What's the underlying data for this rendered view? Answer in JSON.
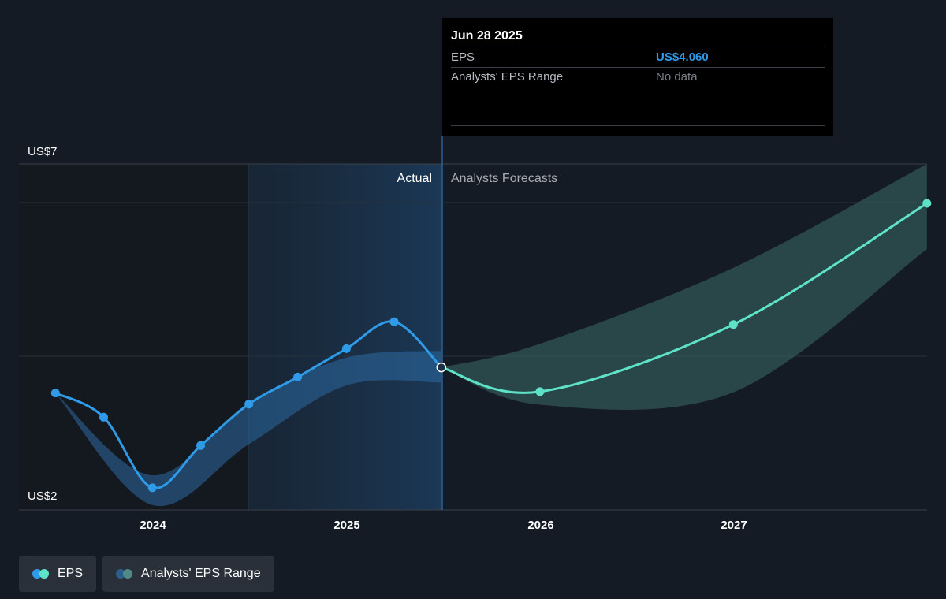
{
  "tooltip": {
    "date": "Jun 28 2025",
    "eps_label": "EPS",
    "eps_value": "US$4.060",
    "range_label": "Analysts' EPS Range",
    "range_value": "No data"
  },
  "labels": {
    "actual": "Actual",
    "forecast": "Analysts Forecasts"
  },
  "legend": {
    "eps": "EPS",
    "range": "Analysts' EPS Range"
  },
  "colors": {
    "background": "#151b24",
    "eps_actual": "#2f9ae8",
    "eps_forecast": "#5ee3c9",
    "range_actual": "#2b6aa3",
    "range_forecast": "#3b6a68",
    "highlight_band": "#1b3550",
    "tooltip_bg": "#000000"
  },
  "chart_data": {
    "type": "line",
    "ylim": [
      2,
      7
    ],
    "ytick_labels": [
      "US$7",
      "US$2"
    ],
    "x_ticks": [
      "2024",
      "2025",
      "2026",
      "2027"
    ],
    "divider_date": "2025-06-28",
    "series": [
      {
        "name": "EPS",
        "segment": "actual",
        "points": [
          {
            "x": "2023-07-01",
            "y": 3.69
          },
          {
            "x": "2023-09-30",
            "y": 3.34
          },
          {
            "x": "2023-12-31",
            "y": 2.32
          },
          {
            "x": "2024-03-31",
            "y": 2.93
          },
          {
            "x": "2024-06-30",
            "y": 3.53
          },
          {
            "x": "2024-09-30",
            "y": 3.92
          },
          {
            "x": "2024-12-31",
            "y": 4.33
          },
          {
            "x": "2025-03-31",
            "y": 4.72
          },
          {
            "x": "2025-06-28",
            "y": 4.06
          }
        ]
      },
      {
        "name": "EPS",
        "segment": "forecast",
        "points": [
          {
            "x": "2025-06-28",
            "y": 4.06
          },
          {
            "x": "2025-12-31",
            "y": 3.71
          },
          {
            "x": "2026-12-31",
            "y": 4.68
          },
          {
            "x": "2027-12-31",
            "y": 6.43
          }
        ]
      }
    ],
    "ranges": [
      {
        "name": "Analysts' EPS Range",
        "segment": "actual",
        "upper": [
          {
            "x": "2023-07-01",
            "y": 3.69
          },
          {
            "x": "2023-12-31",
            "y": 2.5
          },
          {
            "x": "2024-06-30",
            "y": 3.55
          },
          {
            "x": "2024-12-31",
            "y": 4.2
          },
          {
            "x": "2025-06-28",
            "y": 4.3
          }
        ],
        "lower": [
          {
            "x": "2023-07-01",
            "y": 3.69
          },
          {
            "x": "2023-12-31",
            "y": 2.07
          },
          {
            "x": "2024-06-30",
            "y": 2.95
          },
          {
            "x": "2024-12-31",
            "y": 3.8
          },
          {
            "x": "2025-06-28",
            "y": 3.84
          }
        ]
      },
      {
        "name": "Analysts' EPS Range",
        "segment": "forecast",
        "upper": [
          {
            "x": "2025-06-28",
            "y": 4.06
          },
          {
            "x": "2025-12-31",
            "y": 4.4
          },
          {
            "x": "2026-12-31",
            "y": 5.5
          },
          {
            "x": "2027-12-31",
            "y": 7.0
          }
        ],
        "lower": [
          {
            "x": "2025-06-28",
            "y": 4.06
          },
          {
            "x": "2025-12-31",
            "y": 3.52
          },
          {
            "x": "2026-12-31",
            "y": 3.7
          },
          {
            "x": "2027-12-31",
            "y": 5.77
          }
        ]
      }
    ]
  }
}
